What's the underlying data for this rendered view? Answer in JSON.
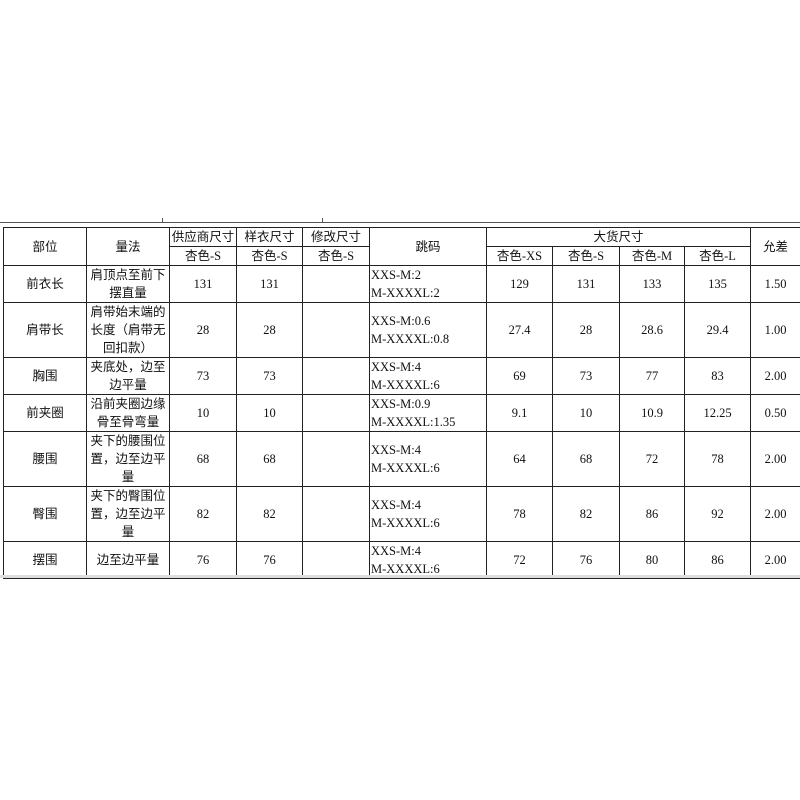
{
  "headers": {
    "part": "部位",
    "method": "量法",
    "supplier": "供应商尺寸",
    "sample": "样衣尺寸",
    "modified": "修改尺寸",
    "grading": "跳码",
    "bulk": "大货尺寸",
    "tolerance": "允差",
    "supplier_size": "杏色-S",
    "sample_size": "杏色-S",
    "modified_size": "杏色-S",
    "bulk_sizes": [
      "杏色-XS",
      "杏色-S",
      "杏色-M",
      "杏色-L"
    ]
  },
  "rows": [
    {
      "part": "前衣长",
      "method": "肩顶点至前下摆直量",
      "supplier": "131",
      "sample": "131",
      "modified": "",
      "grading": [
        "XXS-M:2",
        "M-XXXXL:2"
      ],
      "bulk": [
        "129",
        "131",
        "133",
        "135"
      ],
      "tolerance": "1.50"
    },
    {
      "part": "肩带长",
      "method": "肩带始末端的长度（肩带无回扣款）",
      "supplier": "28",
      "sample": "28",
      "modified": "",
      "grading": [
        "XXS-M:0.6",
        "M-XXXXL:0.8"
      ],
      "bulk": [
        "27.4",
        "28",
        "28.6",
        "29.4"
      ],
      "tolerance": "1.00"
    },
    {
      "part": "胸围",
      "method": "夹底处，边至边平量",
      "supplier": "73",
      "sample": "73",
      "modified": "",
      "grading": [
        "XXS-M:4",
        "M-XXXXL:6"
      ],
      "bulk": [
        "69",
        "73",
        "77",
        "83"
      ],
      "tolerance": "2.00"
    },
    {
      "part": "前夹圈",
      "method": "沿前夹圈边缘骨至骨弯量",
      "supplier": "10",
      "sample": "10",
      "modified": "",
      "grading": [
        "XXS-M:0.9",
        "M-XXXXL:1.35"
      ],
      "bulk": [
        "9.1",
        "10",
        "10.9",
        "12.25"
      ],
      "tolerance": "0.50"
    },
    {
      "part": "腰围",
      "method": "夹下的腰围位置，边至边平量",
      "supplier": "68",
      "sample": "68",
      "modified": "",
      "grading": [
        "XXS-M:4",
        "M-XXXXL:6"
      ],
      "bulk": [
        "64",
        "68",
        "72",
        "78"
      ],
      "tolerance": "2.00"
    },
    {
      "part": "臀围",
      "method": "夹下的臀围位置，边至边平量",
      "supplier": "82",
      "sample": "82",
      "modified": "",
      "grading": [
        "XXS-M:4",
        "M-XXXXL:6"
      ],
      "bulk": [
        "78",
        "82",
        "86",
        "92"
      ],
      "tolerance": "2.00"
    },
    {
      "part": "摆围",
      "method": "边至边平量",
      "supplier": "76",
      "sample": "76",
      "modified": "",
      "grading": [
        "XXS-M:4",
        "M-XXXXL:6"
      ],
      "bulk": [
        "72",
        "76",
        "80",
        "86"
      ],
      "tolerance": "2.00"
    }
  ]
}
